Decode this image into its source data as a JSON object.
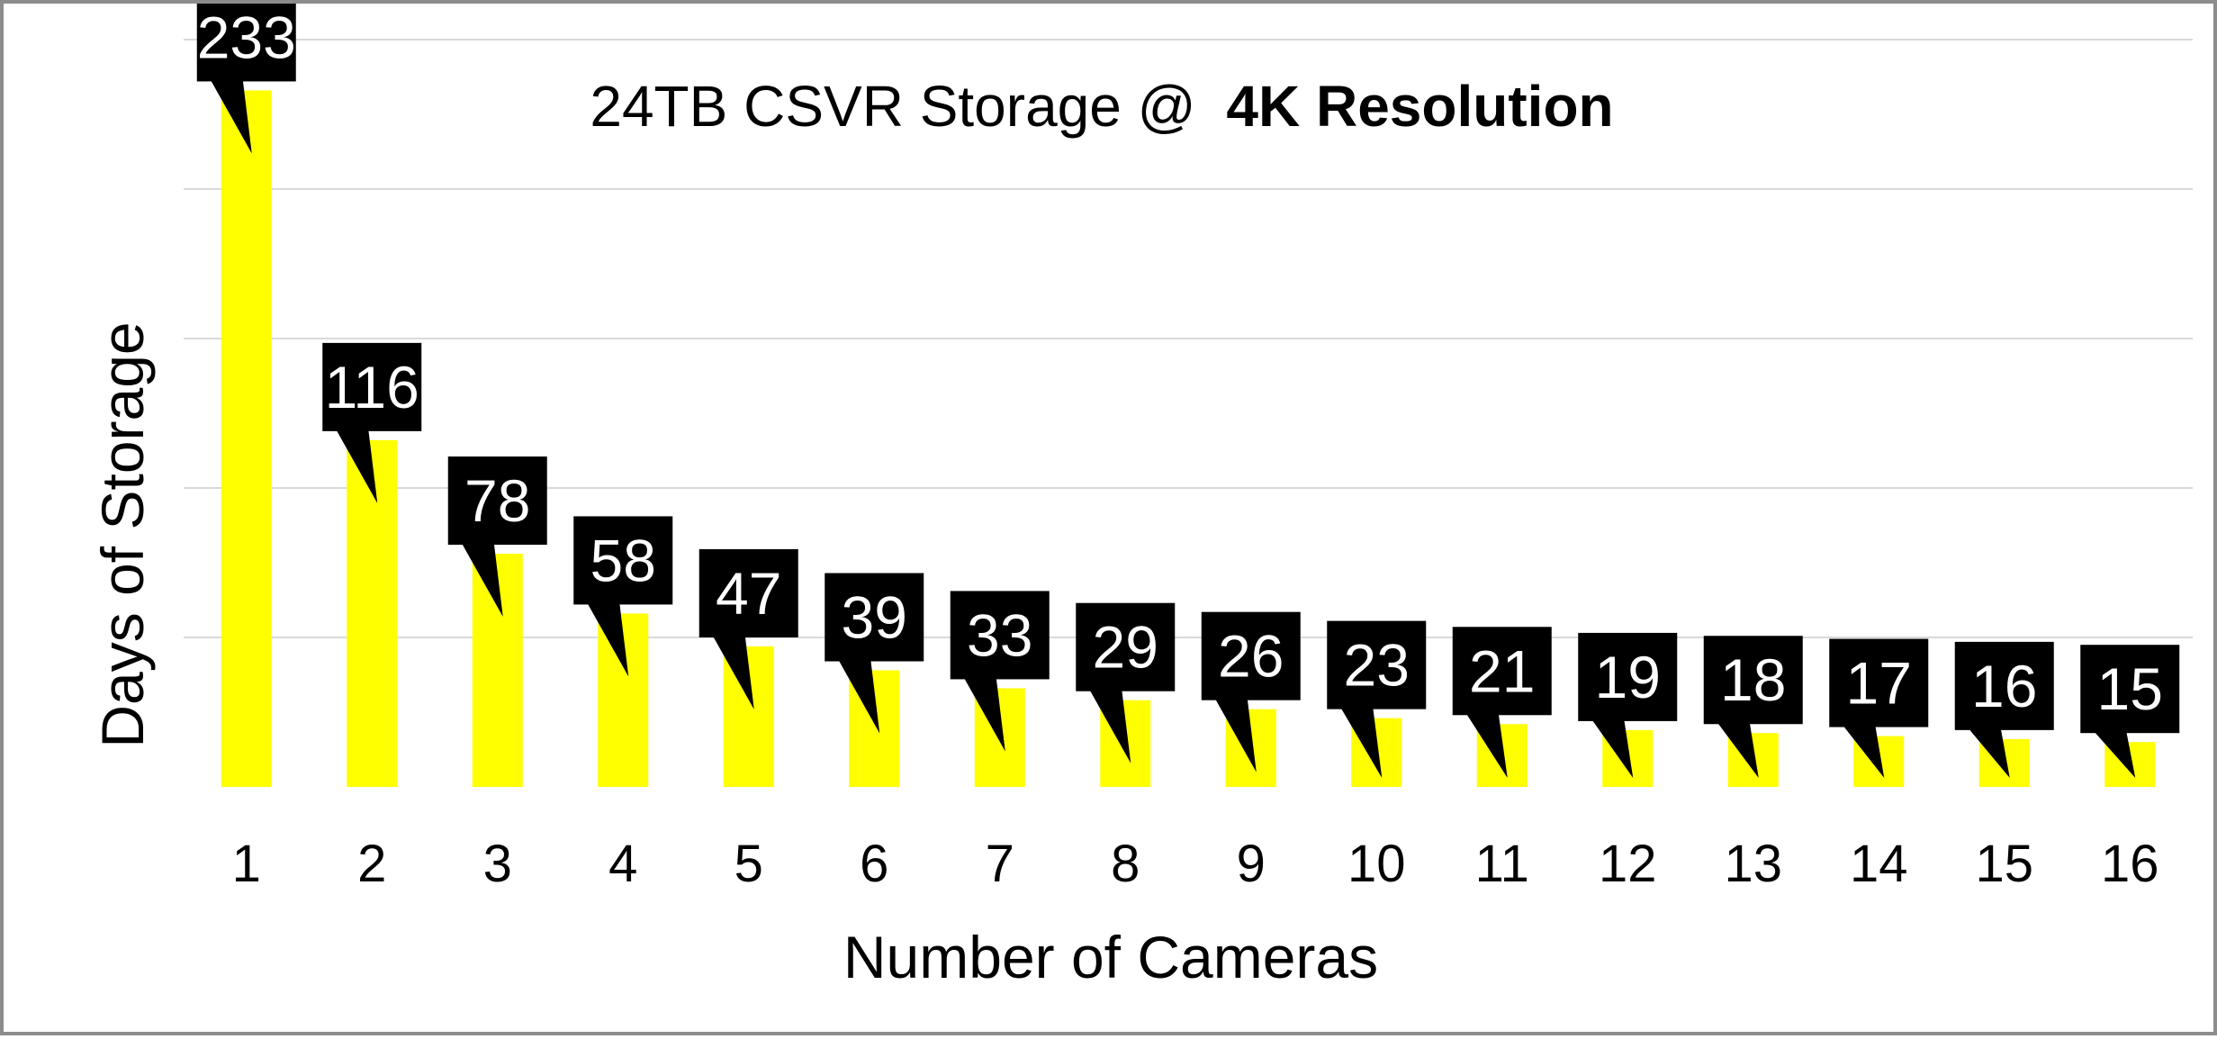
{
  "chart_data": {
    "type": "bar",
    "title": "24TB CSVR Storage @",
    "title_emphasis": "4K Resolution",
    "xlabel": "Number of Cameras",
    "ylabel": "Days of Storage",
    "categories": [
      "1",
      "2",
      "3",
      "4",
      "5",
      "6",
      "7",
      "8",
      "9",
      "10",
      "11",
      "12",
      "13",
      "14",
      "15",
      "16"
    ],
    "values": [
      233,
      116,
      78,
      58,
      47,
      39,
      33,
      29,
      26,
      23,
      21,
      19,
      18,
      17,
      16,
      15
    ],
    "ylim": [
      0,
      250
    ],
    "grid": true,
    "legend": "none",
    "colors": {
      "bar": "#ffff00",
      "label_background": "#000000",
      "label_text": "#ffffff",
      "grid": "#d9d9d9",
      "border": "#8c8c8c"
    }
  }
}
